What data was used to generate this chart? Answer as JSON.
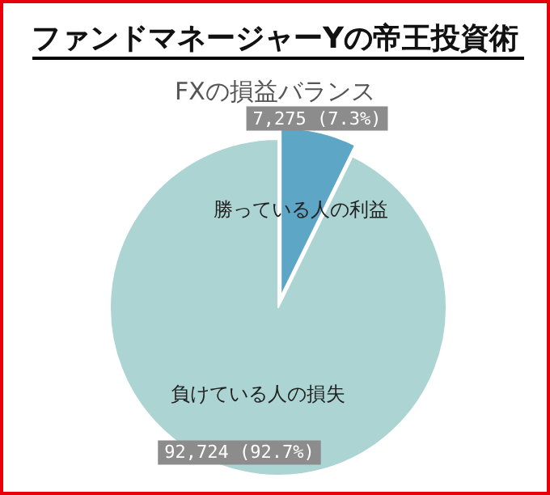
{
  "chart_data": {
    "type": "pie",
    "title": "ファンドマネージャーYの帝王投資術",
    "subtitle": "FXの損益バランス",
    "categories": [
      "勝っている人の利益",
      "負けている人の損失"
    ],
    "values": [
      7275,
      92724
    ],
    "value_labels": [
      "7,275 (7.3%)",
      "92,724 (92.7%)"
    ],
    "colors": [
      "#5ea6c6",
      "#acd4d3"
    ],
    "legend": false
  }
}
